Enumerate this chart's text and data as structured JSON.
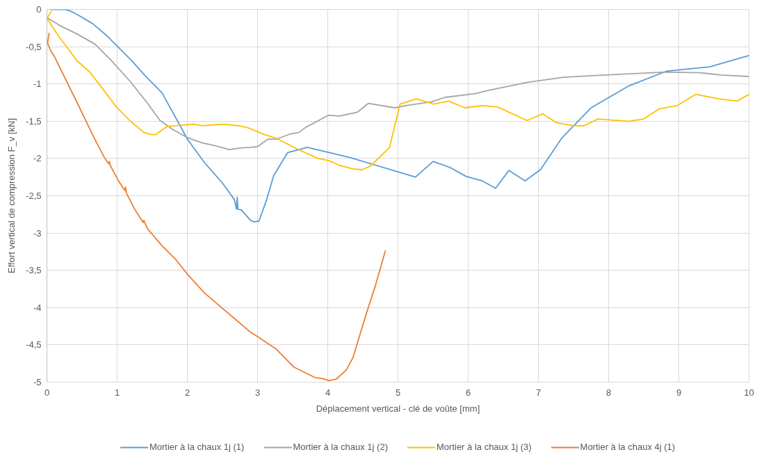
{
  "chart_data": {
    "type": "line",
    "xlabel": "Déplacement vertical - clé de voûte [mm]",
    "ylabel": "Effort vertical de compression F_v [kN]",
    "xlim": [
      0,
      10
    ],
    "ylim": [
      -5,
      0
    ],
    "xticks": [
      0,
      1,
      2,
      3,
      4,
      5,
      6,
      7,
      8,
      9,
      10
    ],
    "yticks": [
      0,
      {
        "value": -0.5,
        "label": "-0,5"
      },
      -1,
      {
        "value": -1.5,
        "label": "-1,5"
      },
      -2,
      {
        "value": -2.5,
        "label": "-2,5"
      },
      -3,
      {
        "value": -3.5,
        "label": "-3,5"
      },
      -4,
      {
        "value": -4.5,
        "label": "-4,5"
      },
      -5
    ],
    "grid": true,
    "legend": "bottom",
    "series": [
      {
        "name": "Mortier à la chaux 1j (1)",
        "color": "#5b9bd5",
        "x": [
          0.05,
          0.25,
          0.33,
          0.45,
          0.65,
          0.85,
          1.01,
          1.2,
          1.39,
          1.64,
          1.88,
          2.0,
          2.24,
          2.5,
          2.67,
          2.7,
          2.71,
          2.72,
          2.77,
          2.9,
          2.95,
          3.02,
          3.07,
          3.13,
          3.23,
          3.43,
          3.71,
          4.29,
          5.25,
          5.5,
          5.74,
          5.97,
          6.2,
          6.39,
          6.58,
          6.81,
          7.03,
          7.33,
          7.75,
          8.28,
          8.82,
          9.44,
          10.0
        ],
        "values": [
          0,
          0,
          -0.02,
          -0.08,
          -0.19,
          -0.35,
          -0.5,
          -0.68,
          -0.88,
          -1.12,
          -1.53,
          -1.74,
          -2.05,
          -2.33,
          -2.55,
          -2.68,
          -2.52,
          -2.68,
          -2.69,
          -2.83,
          -2.85,
          -2.84,
          -2.71,
          -2.55,
          -2.23,
          -1.92,
          -1.85,
          -1.98,
          -2.25,
          -2.04,
          -2.12,
          -2.24,
          -2.3,
          -2.4,
          -2.16,
          -2.3,
          -2.15,
          -1.73,
          -1.32,
          -1.03,
          -0.83,
          -0.77,
          -0.62
        ]
      },
      {
        "name": "Mortier à la chaux 1j (2)",
        "color": "#a5a5a5",
        "x": [
          0,
          0.19,
          0.43,
          0.69,
          0.92,
          1.19,
          1.45,
          1.61,
          1.81,
          2.0,
          2.21,
          2.4,
          2.6,
          2.75,
          2.9,
          3.0,
          3.15,
          3.27,
          3.47,
          3.59,
          3.69,
          4.01,
          4.16,
          4.42,
          4.58,
          4.95,
          5.11,
          5.48,
          5.67,
          6.1,
          6.27,
          6.83,
          7.36,
          7.75,
          8.81,
          9.31,
          9.6,
          10
        ],
        "values": [
          -0.11,
          -0.22,
          -0.33,
          -0.47,
          -0.69,
          -0.97,
          -1.28,
          -1.49,
          -1.62,
          -1.72,
          -1.79,
          -1.83,
          -1.88,
          -1.86,
          -1.85,
          -1.84,
          -1.74,
          -1.74,
          -1.67,
          -1.65,
          -1.58,
          -1.42,
          -1.43,
          -1.38,
          -1.26,
          -1.32,
          -1.29,
          -1.24,
          -1.18,
          -1.13,
          -1.09,
          -0.98,
          -0.91,
          -0.89,
          -0.84,
          -0.85,
          -0.88,
          -0.9
        ]
      },
      {
        "name": "Mortier à la chaux 1j (3)",
        "color": "#ffc000",
        "x": [
          0.06,
          0.0,
          0.16,
          0.43,
          0.61,
          0.79,
          0.99,
          1.19,
          1.38,
          1.49,
          1.55,
          1.71,
          2.08,
          2.21,
          2.5,
          2.73,
          2.87,
          3.1,
          3.27,
          3.56,
          3.86,
          4.02,
          4.16,
          4.36,
          4.49,
          4.61,
          4.88,
          5.03,
          5.26,
          5.51,
          5.72,
          5.95,
          6.2,
          6.42,
          6.84,
          7.06,
          7.26,
          7.49,
          7.65,
          7.85,
          8.28,
          8.5,
          8.73,
          8.98,
          9.24,
          9.57,
          9.83,
          10
        ],
        "values": [
          -0.03,
          -0.12,
          -0.35,
          -0.69,
          -0.84,
          -1.06,
          -1.31,
          -1.5,
          -1.65,
          -1.68,
          -1.68,
          -1.57,
          -1.54,
          -1.56,
          -1.54,
          -1.56,
          -1.59,
          -1.68,
          -1.73,
          -1.87,
          -2.0,
          -2.03,
          -2.09,
          -2.14,
          -2.15,
          -2.1,
          -1.85,
          -1.27,
          -1.2,
          -1.27,
          -1.23,
          -1.32,
          -1.29,
          -1.31,
          -1.49,
          -1.4,
          -1.52,
          -1.56,
          -1.56,
          -1.47,
          -1.5,
          -1.47,
          -1.33,
          -1.29,
          -1.14,
          -1.2,
          -1.23,
          -1.14
        ]
      },
      {
        "name": "Mortier à la chaux 4j (1)",
        "color": "#ed7d31",
        "x": [
          0.03,
          0.01,
          0.05,
          0.1,
          0.23,
          0.43,
          0.65,
          0.82,
          0.88,
          0.89,
          0.9,
          1.02,
          1.11,
          1.12,
          1.13,
          1.25,
          1.37,
          1.38,
          1.43,
          1.64,
          1.84,
          2.0,
          2.24,
          2.5,
          2.7,
          2.9,
          3.0,
          3.27,
          3.52,
          3.82,
          3.92,
          4.02,
          4.12,
          4.26,
          4.36,
          4.42,
          4.55,
          4.68,
          4.82
        ],
        "values": [
          -0.32,
          -0.45,
          -0.55,
          -0.62,
          -0.87,
          -1.25,
          -1.68,
          -1.99,
          -2.07,
          -2.04,
          -2.09,
          -2.3,
          -2.43,
          -2.38,
          -2.46,
          -2.68,
          -2.86,
          -2.83,
          -2.94,
          -3.17,
          -3.36,
          -3.55,
          -3.8,
          -4.01,
          -4.17,
          -4.33,
          -4.39,
          -4.56,
          -4.8,
          -4.94,
          -4.95,
          -4.98,
          -4.96,
          -4.84,
          -4.67,
          -4.48,
          -4.08,
          -3.7,
          -3.24
        ]
      }
    ]
  }
}
